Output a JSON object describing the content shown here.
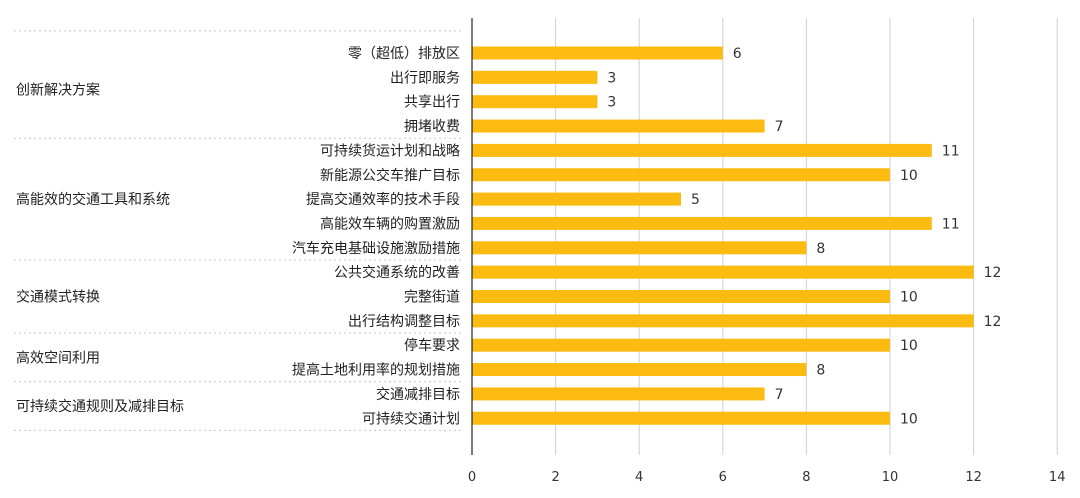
{
  "colors": {
    "bar": "#fbbb10",
    "grid": "#cfcfcf",
    "axis": "#222222"
  },
  "chart_data": {
    "type": "bar",
    "orientation": "horizontal",
    "title": "",
    "xlabel": "",
    "ylabel": "",
    "xlim": [
      0,
      14
    ],
    "xticks": [
      "0",
      "2",
      "4",
      "6",
      "8",
      "10",
      "12",
      "14"
    ],
    "grid": true,
    "groups": [
      {
        "name": "创新解决方案",
        "items": [
          {
            "label": "零（超低）排放区",
            "value": 6
          },
          {
            "label": "出行即服务",
            "value": 3
          },
          {
            "label": "共享出行",
            "value": 3
          },
          {
            "label": "拥堵收费",
            "value": 7
          }
        ]
      },
      {
        "name": "高能效的交通工具和系统",
        "items": [
          {
            "label": "可持续货运计划和战略",
            "value": 11
          },
          {
            "label": "新能源公交车推广目标",
            "value": 10
          },
          {
            "label": "提高交通效率的技术手段",
            "value": 5
          },
          {
            "label": "高能效车辆的购置激励",
            "value": 11
          },
          {
            "label": "汽车充电基础设施激励措施",
            "value": 8
          }
        ]
      },
      {
        "name": "交通模式转换",
        "items": [
          {
            "label": "公共交通系统的改善",
            "value": 12
          },
          {
            "label": "完整街道",
            "value": 10
          },
          {
            "label": "出行结构调整目标",
            "value": 12
          }
        ]
      },
      {
        "name": "高效空间利用",
        "items": [
          {
            "label": "停车要求",
            "value": 10
          },
          {
            "label": "提高土地利用率的规划措施",
            "value": 8
          }
        ]
      },
      {
        "name": "可持续交通规则及减排目标",
        "items": [
          {
            "label": "交通减排目标",
            "value": 7
          },
          {
            "label": "可持续交通计划",
            "value": 10
          }
        ]
      }
    ]
  }
}
